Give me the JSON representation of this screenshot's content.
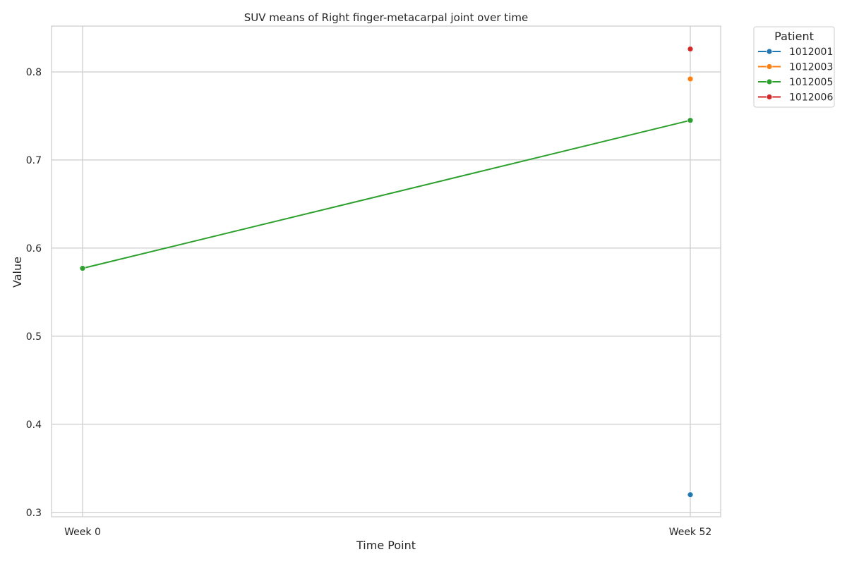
{
  "chart_data": {
    "type": "line",
    "title": "SUV means of Right finger-metacarpal joint over time",
    "xlabel": "Time Point",
    "ylabel": "Value",
    "categories": [
      "Week 0",
      "Week 52"
    ],
    "ylim": [
      0.295,
      0.852
    ],
    "yticks": [
      "0.3",
      "0.4",
      "0.5",
      "0.6",
      "0.7",
      "0.8"
    ],
    "grid": true,
    "legend": {
      "title": "Patient",
      "placement": "outside-right-top"
    },
    "series": [
      {
        "name": "1012001",
        "color": "#1f77b4",
        "values": [
          null,
          0.32
        ]
      },
      {
        "name": "1012003",
        "color": "#ff7f0e",
        "values": [
          null,
          0.792
        ]
      },
      {
        "name": "1012005",
        "color": "#2ca02c",
        "values": [
          0.577,
          0.745
        ]
      },
      {
        "name": "1012006",
        "color": "#d62728",
        "values": [
          null,
          0.826
        ]
      }
    ]
  }
}
